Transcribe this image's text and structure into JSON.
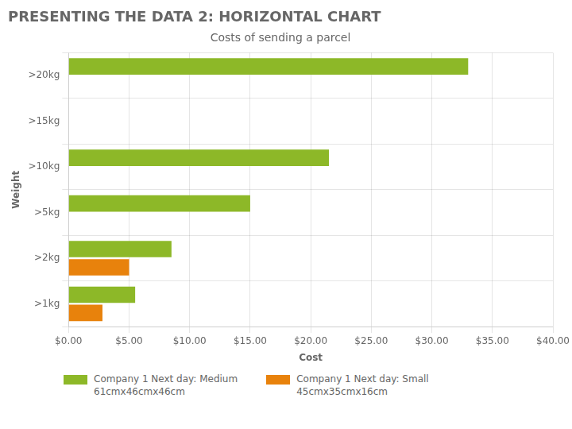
{
  "chart_data": {
    "type": "bar",
    "orientation": "horizontal",
    "title": "PRESENTING THE DATA 2: HORIZONTAL CHART",
    "subtitle": "Costs of sending a parcel",
    "x_label": "Cost",
    "y_label": "Weight",
    "categories": [
      ">20kg",
      ">15kg",
      ">10kg",
      ">5kg",
      ">2kg",
      ">1kg"
    ],
    "series": [
      {
        "name": "Company 1 Next day: Medium\n61cmx46cmx46cm",
        "color": "#8DB828",
        "values": [
          33.0,
          0,
          21.5,
          15.0,
          8.5,
          5.5
        ]
      },
      {
        "name": "Company 1 Next day: Small\n45cmx35cmx16cm",
        "color": "#E8820C",
        "values": [
          0,
          0,
          0,
          0,
          5.0,
          2.8
        ]
      }
    ],
    "xlim": [
      0,
      40
    ],
    "xticks": [
      {
        "value": 0,
        "label": "$0.00"
      },
      {
        "value": 5,
        "label": "$5.00"
      },
      {
        "value": 10,
        "label": "$10.00"
      },
      {
        "value": 15,
        "label": "$15.00"
      },
      {
        "value": 20,
        "label": "$20.00"
      },
      {
        "value": 25,
        "label": "$25.00"
      },
      {
        "value": 30,
        "label": "$30.00"
      },
      {
        "value": 35,
        "label": "$35.00"
      },
      {
        "value": 40,
        "label": "$40.00"
      }
    ],
    "grid": true,
    "legend": "bottom"
  }
}
